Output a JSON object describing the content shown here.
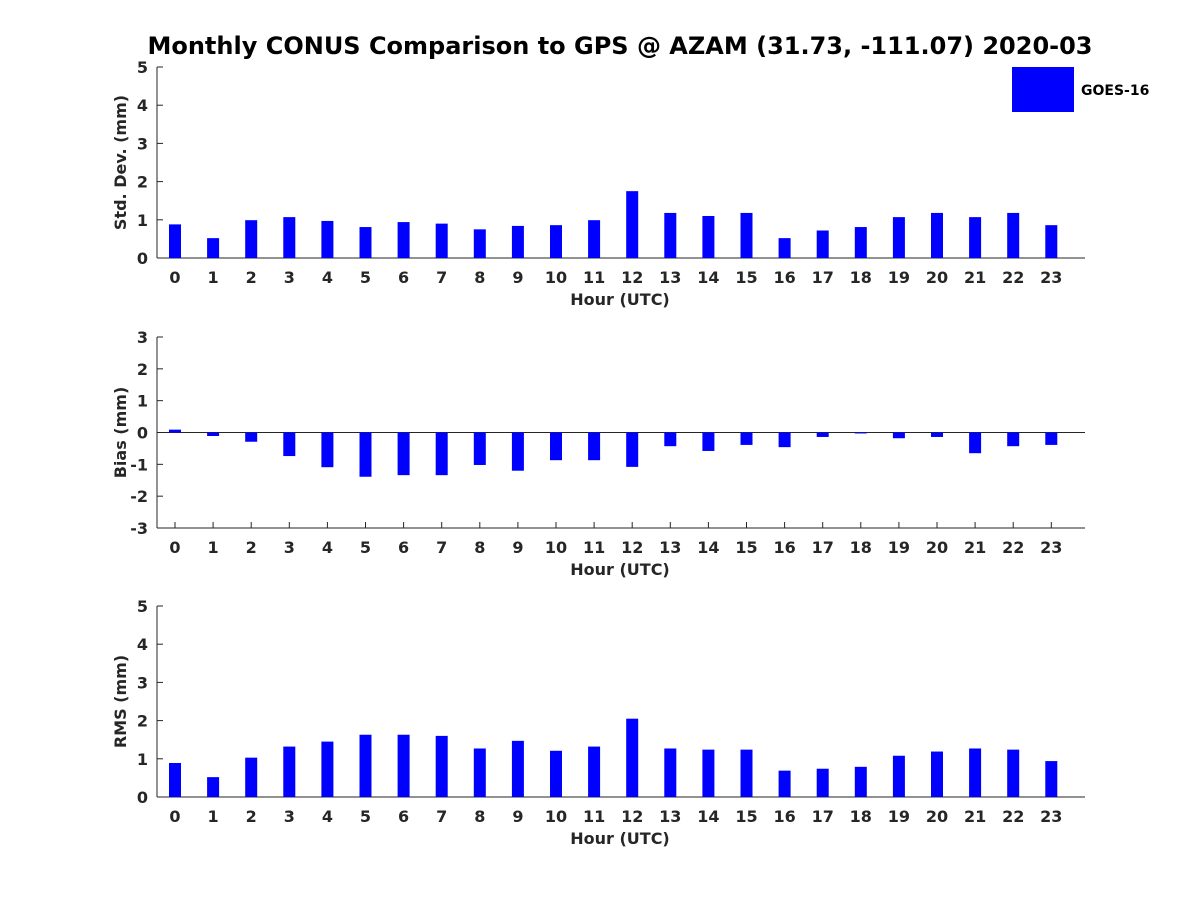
{
  "chart_data": {
    "title": "Monthly CONUS Comparison to GPS @ AZAM (31.73, -111.07) 2020-03",
    "type": "bar",
    "series_name": "GOES-16",
    "color": "#0000ff",
    "legend": {
      "label": "GOES-16",
      "placement": "top-right"
    },
    "categories": [
      "0",
      "1",
      "2",
      "3",
      "4",
      "5",
      "6",
      "7",
      "8",
      "9",
      "10",
      "11",
      "12",
      "13",
      "14",
      "15",
      "16",
      "17",
      "18",
      "19",
      "20",
      "21",
      "22",
      "23"
    ],
    "panels": [
      {
        "id": "std",
        "ylabel": "Std. Dev. (mm)",
        "xlabel": "Hour (UTC)",
        "ylim": [
          0,
          5
        ],
        "yticks": [
          "0",
          "1",
          "2",
          "3",
          "4",
          "5"
        ],
        "values": [
          0.88,
          0.52,
          0.99,
          1.07,
          0.97,
          0.81,
          0.94,
          0.9,
          0.75,
          0.84,
          0.86,
          0.99,
          1.75,
          1.18,
          1.1,
          1.18,
          0.52,
          0.72,
          0.81,
          1.07,
          1.18,
          1.07,
          1.18,
          0.86
        ]
      },
      {
        "id": "bias",
        "ylabel": "Bias (mm)",
        "xlabel": "Hour (UTC)",
        "ylim": [
          -3,
          3
        ],
        "yticks": [
          "-3",
          "-2",
          "-1",
          "0",
          "1",
          "2",
          "3"
        ],
        "values": [
          0.09,
          -0.11,
          -0.29,
          -0.74,
          -1.09,
          -1.39,
          -1.34,
          -1.34,
          -1.02,
          -1.2,
          -0.87,
          -0.87,
          -1.08,
          -0.43,
          -0.58,
          -0.39,
          -0.46,
          -0.14,
          -0.03,
          -0.18,
          -0.14,
          -0.65,
          -0.43,
          -0.39
        ]
      },
      {
        "id": "rms",
        "ylabel": "RMS (mm)",
        "xlabel": "Hour (UTC)",
        "ylim": [
          0,
          5
        ],
        "yticks": [
          "0",
          "1",
          "2",
          "3",
          "4",
          "5"
        ],
        "values": [
          0.89,
          0.52,
          1.03,
          1.32,
          1.45,
          1.63,
          1.63,
          1.6,
          1.27,
          1.47,
          1.21,
          1.32,
          2.05,
          1.27,
          1.24,
          1.24,
          0.69,
          0.74,
          0.79,
          1.08,
          1.19,
          1.27,
          1.24,
          0.94
        ]
      }
    ]
  }
}
